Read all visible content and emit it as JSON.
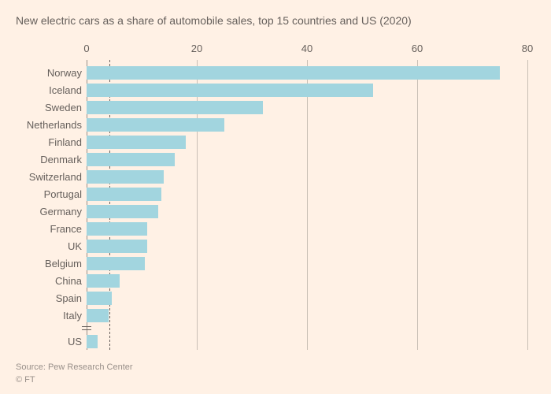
{
  "chart": {
    "type": "bar",
    "title": "New electric cars as a share of automobile sales, top 15 countries and US (2020)",
    "orientation": "horizontal",
    "background_color": "#fff1e5",
    "bar_color": "#a2d5df",
    "gridline_color": "#c9bfb5",
    "zero_line_color": "#99908a",
    "text_color": "#66605c",
    "title_fontsize": 14,
    "label_fontsize": 13,
    "x_axis": {
      "min": 0,
      "max": 80,
      "ticks": [
        0,
        20,
        40,
        60,
        80
      ]
    },
    "reference_line": {
      "value": 4.2,
      "style": "dashed",
      "color": "#66605c"
    },
    "axis_break_after": "Italy",
    "data": [
      {
        "label": "Norway",
        "value": 75
      },
      {
        "label": "Iceland",
        "value": 52
      },
      {
        "label": "Sweden",
        "value": 32
      },
      {
        "label": "Netherlands",
        "value": 25
      },
      {
        "label": "Finland",
        "value": 18
      },
      {
        "label": "Denmark",
        "value": 16
      },
      {
        "label": "Switzerland",
        "value": 14
      },
      {
        "label": "Portugal",
        "value": 13.5
      },
      {
        "label": "Germany",
        "value": 13
      },
      {
        "label": "France",
        "value": 11
      },
      {
        "label": "UK",
        "value": 11
      },
      {
        "label": "Belgium",
        "value": 10.5
      },
      {
        "label": "China",
        "value": 6
      },
      {
        "label": "Spain",
        "value": 4.5
      },
      {
        "label": "Italy",
        "value": 4
      },
      {
        "label": "US",
        "value": 2
      }
    ],
    "source": "Source: Pew Research Center",
    "copyright": "© FT"
  }
}
